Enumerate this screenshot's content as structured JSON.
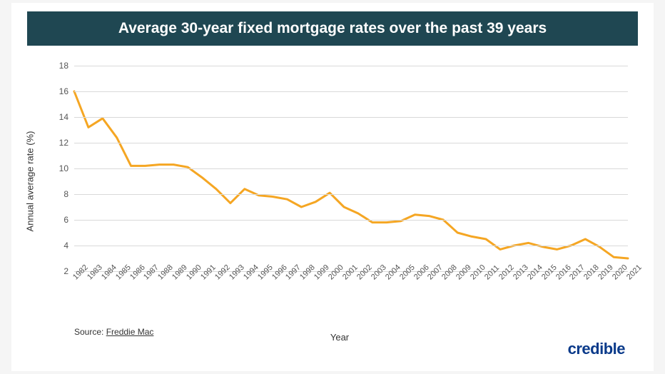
{
  "title": "Average 30-year fixed mortgage rates over the past 39 years",
  "title_bar_bg": "#1f4752",
  "title_color": "#ffffff",
  "title_fontsize": 21,
  "background_color": "#ffffff",
  "chart": {
    "type": "line",
    "line_color": "#f5a623",
    "line_width": 3,
    "grid_color": "#d9d9d9",
    "axis_color": "#cfcfcf",
    "ylabel": "Annual average rate (%)",
    "xlabel": "Year",
    "label_fontsize": 13,
    "tick_fontsize": 12,
    "xlim": [
      1982,
      2021
    ],
    "ylim": [
      2,
      18
    ],
    "ytick_step": 2,
    "yticks": [
      2,
      4,
      6,
      8,
      10,
      12,
      14,
      16,
      18
    ],
    "years": [
      1982,
      1983,
      1984,
      1985,
      1986,
      1987,
      1988,
      1989,
      1990,
      1991,
      1992,
      1993,
      1994,
      1995,
      1996,
      1997,
      1998,
      1999,
      2000,
      2001,
      2002,
      2003,
      2004,
      2005,
      2006,
      2007,
      2008,
      2009,
      2010,
      2011,
      2012,
      2013,
      2014,
      2015,
      2016,
      2017,
      2018,
      2019,
      2020,
      2021
    ],
    "values": [
      16.0,
      13.2,
      13.9,
      12.4,
      10.2,
      10.2,
      10.3,
      10.3,
      10.1,
      9.3,
      8.4,
      7.3,
      8.4,
      7.9,
      7.8,
      7.6,
      7.0,
      7.4,
      8.1,
      7.0,
      6.5,
      5.8,
      5.8,
      5.9,
      6.4,
      6.3,
      6.0,
      5.0,
      4.7,
      4.5,
      3.7,
      4.0,
      4.2,
      3.9,
      3.7,
      4.0,
      4.5,
      3.9,
      3.1,
      3.0
    ]
  },
  "source_prefix": "Source: ",
  "source_name": "Freddie Mac",
  "brand": "credible",
  "brand_color": "#0a3a8a",
  "brand_fontsize": 22
}
